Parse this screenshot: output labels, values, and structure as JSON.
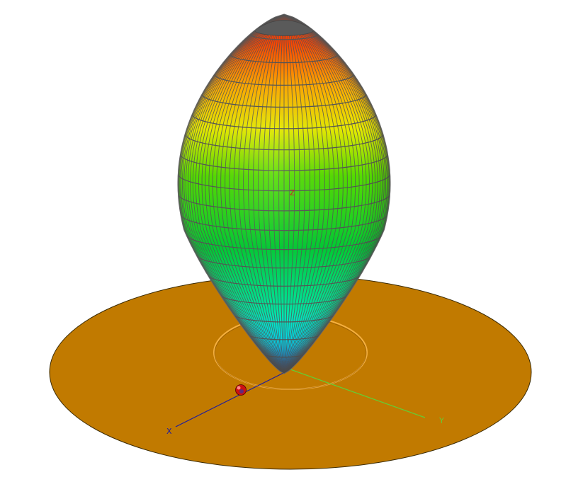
{
  "axes": {
    "x": {
      "label": "X",
      "color": "#1a1aa0"
    },
    "y": {
      "label": "Y",
      "color": "#66cc33"
    },
    "z": {
      "label": "Z",
      "color": "#cc2222"
    }
  },
  "colors": {
    "disc_fill": "#c17a00",
    "disc_edge": "#3a2a00",
    "mesh_line": "#555555",
    "cap_dark": "#555555",
    "orbit_line": "#f0a030",
    "marker": "#cc1111"
  },
  "surface": {
    "shape": "prolate-ellipsoid",
    "colormap": [
      "#0055ff",
      "#00e5ff",
      "#00d050",
      "#44dd00",
      "#e6e600",
      "#ff9900",
      "#ff3300"
    ]
  }
}
